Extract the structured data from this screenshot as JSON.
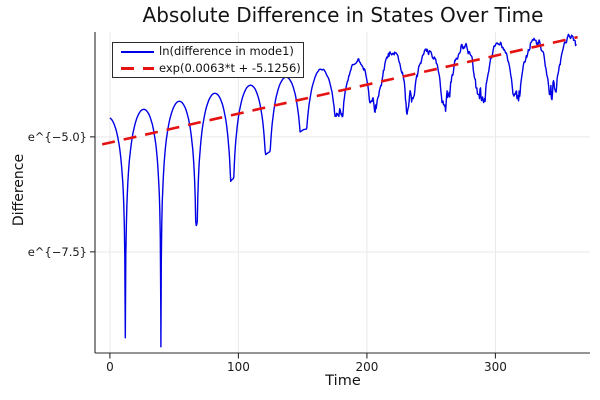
{
  "title": "Absolute Difference in States Over Time",
  "axes": {
    "xlabel": "Time",
    "ylabel": "Difference"
  },
  "chart_data": {
    "type": "line",
    "title": "Absolute Difference in States Over Time",
    "xlabel": "Time",
    "ylabel": "Difference",
    "grid": true,
    "legend_position": "top-left",
    "x_range": [
      -11.6,
      373.6
    ],
    "y_range": [
      -9.7,
      -2.72
    ],
    "x_ticks": {
      "values": [
        0,
        100,
        200,
        300
      ],
      "labels": [
        "0",
        "100",
        "200",
        "300"
      ]
    },
    "y_ticks": {
      "values": [
        -5.0,
        -7.5
      ],
      "labels": [
        "e^{−5.0}",
        "e^{−7.5}"
      ]
    },
    "colors": {
      "blue_line": "#0000e6",
      "red_line": "#e51212",
      "grid": "#e9e9e9",
      "axis": "#2b2b2b",
      "tick_text": "#1a1a1a"
    },
    "series": [
      {
        "name": "ln(difference in mode1)",
        "color": "#0000e6",
        "style": "solid",
        "line_width": 1.4,
        "model": {
          "kind": "log_abs_oscillation",
          "slope": 0.0063,
          "intercept": -5.1256,
          "peak_offset": 0.56,
          "peak_decay_start": 215,
          "zero_spacing": 27.7,
          "first_zero": 12.0,
          "dip_depths_lnrel": [
            -4.88,
            -5.25,
            -2.77,
            -1.96,
            -1.56,
            -1.23,
            -1.11,
            -1.01
          ],
          "dip_bottom_values": [
            -9.37,
            -9.56,
            -6.91,
            -5.93,
            -5.35,
            -4.85,
            -4.55,
            -4.28
          ],
          "noise_floor_lnrel": -1.1,
          "noise_ramp": [
            150,
            215
          ],
          "jitter_base": 0.1,
          "jitter_dip_extra": 0.3,
          "t_start": 0,
          "t_end": 363,
          "dt": 0.4,
          "seed": 7
        }
      },
      {
        "name": "exp(0.0063*t + -5.1256)",
        "color": "#e51212",
        "style": "dashed",
        "line_width": 2.6,
        "dash": [
          13,
          9
        ],
        "model": {
          "kind": "linear_in_log",
          "slope": 0.0063,
          "intercept": -5.1256,
          "t_start": -6,
          "t_end": 364
        }
      }
    ]
  }
}
